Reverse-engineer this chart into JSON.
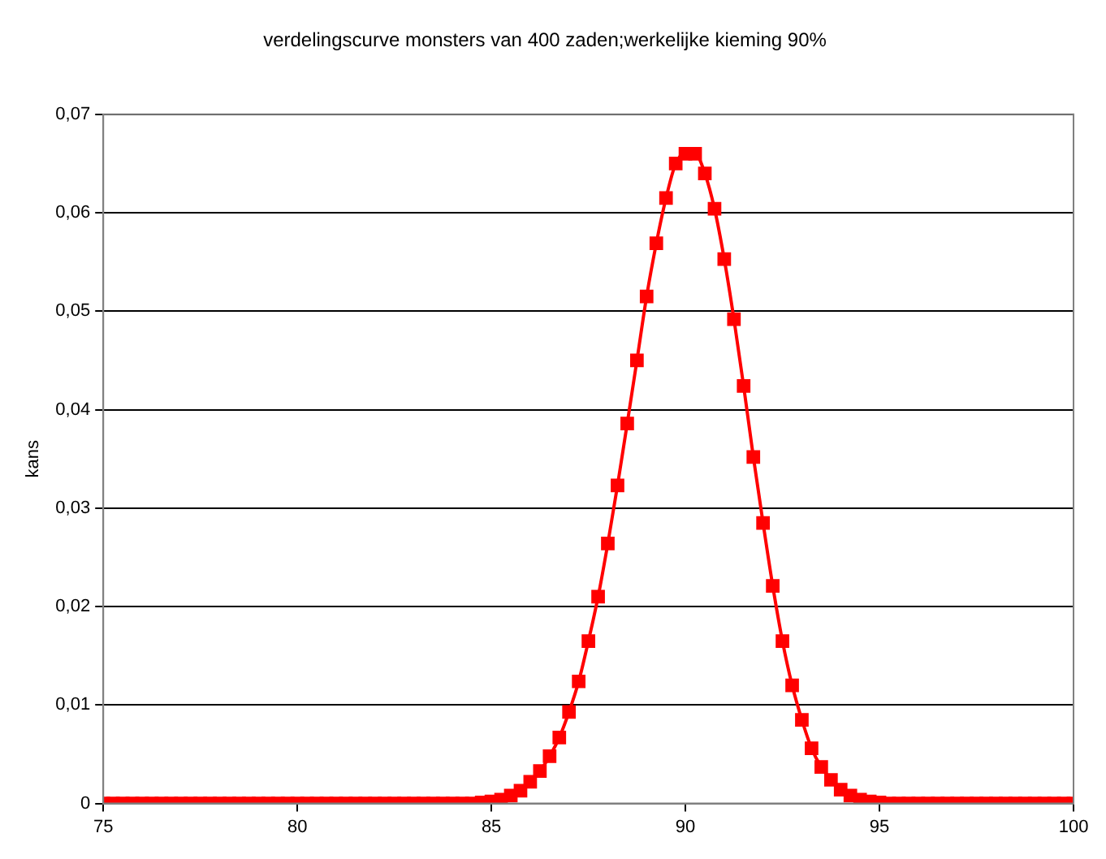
{
  "chart_data": {
    "type": "line",
    "title": "verdelingscurve monsters van 400 zaden;werkelijke kieming 90%",
    "ylabel": "kans",
    "x": [
      75,
      75.25,
      75.5,
      75.75,
      76,
      76.25,
      76.5,
      76.75,
      77,
      77.25,
      77.5,
      77.75,
      78,
      78.25,
      78.5,
      78.75,
      79,
      79.25,
      79.5,
      79.75,
      80,
      80.25,
      80.5,
      80.75,
      81,
      81.25,
      81.5,
      81.75,
      82,
      82.25,
      82.5,
      82.75,
      83,
      83.25,
      83.5,
      83.75,
      84,
      84.25,
      84.5,
      84.75,
      85,
      85.25,
      85.5,
      85.75,
      86,
      86.25,
      86.5,
      86.75,
      87,
      87.25,
      87.5,
      87.75,
      88,
      88.25,
      88.5,
      88.75,
      89,
      89.25,
      89.5,
      89.75,
      90,
      90.25,
      90.5,
      90.75,
      91,
      91.25,
      91.5,
      91.75,
      92,
      92.25,
      92.5,
      92.75,
      93,
      93.25,
      93.5,
      93.75,
      94,
      94.25,
      94.5,
      94.75,
      95,
      95.25,
      95.5,
      95.75,
      96,
      96.25,
      96.5,
      96.75,
      97,
      97.25,
      97.5,
      97.75,
      98,
      98.25,
      98.5,
      98.75,
      99,
      99.25,
      99.5,
      99.75,
      100
    ],
    "series": [
      {
        "color": "#ff0000",
        "values": [
          0,
          0,
          0,
          0,
          0,
          0,
          0,
          0,
          0,
          0,
          0,
          0,
          0,
          0,
          0,
          0,
          0,
          0,
          0,
          0,
          0,
          0,
          0,
          0,
          0,
          0,
          0,
          0,
          0,
          0,
          0,
          0,
          0,
          0,
          0,
          0,
          0,
          0,
          0,
          0.0001,
          0.0002,
          0.0004,
          0.0008,
          0.0013,
          0.0022,
          0.0033,
          0.0048,
          0.0067,
          0.0093,
          0.0124,
          0.0165,
          0.021,
          0.0264,
          0.0323,
          0.0386,
          0.045,
          0.0515,
          0.0569,
          0.0615,
          0.065,
          0.066,
          0.066,
          0.064,
          0.0604,
          0.0553,
          0.0492,
          0.0424,
          0.0352,
          0.0285,
          0.0221,
          0.0165,
          0.012,
          0.0085,
          0.0056,
          0.0037,
          0.0024,
          0.0014,
          0.0008,
          0.0004,
          0.0002,
          0.0001,
          0,
          0,
          0,
          0,
          0,
          0,
          0,
          0,
          0,
          0,
          0,
          0,
          0,
          0,
          0,
          0,
          0,
          0,
          0,
          0
        ]
      }
    ],
    "xlim": [
      75,
      100
    ],
    "xticks": [
      75,
      80,
      85,
      90,
      95,
      100
    ],
    "ylim": [
      0,
      0.07
    ],
    "yticks": [
      0,
      {
        "value": 0.01,
        "label": "0,01"
      },
      {
        "value": 0.02,
        "label": "0,02"
      },
      {
        "value": 0.03,
        "label": "0,03"
      },
      {
        "value": 0.04,
        "label": "0,04"
      },
      {
        "value": 0.05,
        "label": "0,05"
      },
      {
        "value": 0.06,
        "label": "0,06"
      },
      {
        "value": 0.07,
        "label": "0,07"
      }
    ],
    "grid": "y",
    "legend": false,
    "marker": "square",
    "line_style": "solid"
  }
}
